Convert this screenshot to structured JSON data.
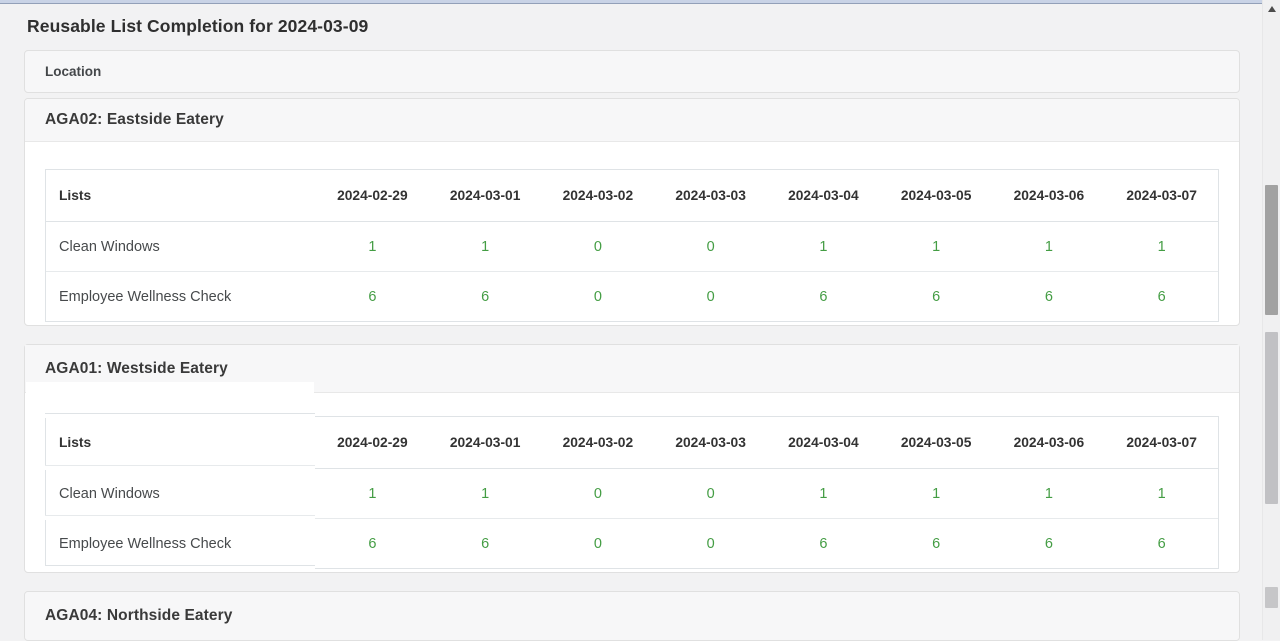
{
  "page": {
    "title": "Reusable List Completion for 2024-03-09"
  },
  "filter_panel": {
    "label": "Location"
  },
  "table": {
    "first_column_header": "Lists",
    "date_columns": [
      "2024-02-29",
      "2024-03-01",
      "2024-03-02",
      "2024-03-03",
      "2024-03-04",
      "2024-03-05",
      "2024-03-06",
      "2024-03-07"
    ]
  },
  "sections": [
    {
      "title": "AGA02: Eastside Eatery",
      "rows": [
        {
          "label": "Clean Windows",
          "values": [
            1,
            1,
            0,
            0,
            1,
            1,
            1,
            1
          ]
        },
        {
          "label": "Employee Wellness Check",
          "values": [
            6,
            6,
            0,
            0,
            6,
            6,
            6,
            6
          ]
        }
      ]
    },
    {
      "title": "AGA01: Westside Eatery",
      "rows": [
        {
          "label": "Clean Windows",
          "values": [
            1,
            1,
            0,
            0,
            1,
            1,
            1,
            1
          ]
        },
        {
          "label": "Employee Wellness Check",
          "values": [
            6,
            6,
            0,
            0,
            6,
            6,
            6,
            6
          ]
        }
      ]
    },
    {
      "title": "AGA04: Northside Eatery",
      "rows": []
    }
  ],
  "colors": {
    "value_green": "#449d44",
    "accent_strip": "#c9d3e6"
  },
  "icons": {
    "scrollbar_up": "scroll-up-arrow-icon"
  }
}
